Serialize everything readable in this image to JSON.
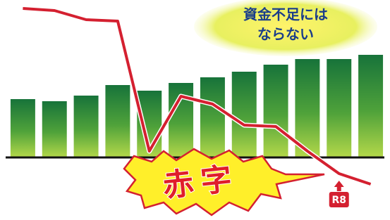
{
  "chart_data": {
    "type": "bar-line",
    "categories": [
      null,
      null,
      null,
      null,
      null,
      null,
      null,
      null,
      null,
      null,
      "R8",
      null
    ],
    "values": [
      83,
      80,
      88,
      103,
      95,
      106,
      114,
      122,
      132,
      140,
      140,
      146
    ],
    "color": "#2a8a3a",
    "line": {
      "values": [
        212,
        209,
        196,
        194,
        9,
        87,
        76,
        46,
        44,
        9,
        -23,
        -38
      ],
      "color": "#d42030"
    },
    "ylim": [
      -90,
      230
    ],
    "callouts": {
      "cloud": [
        "資金不足には",
        "ならない"
      ],
      "burst": "赤字"
    }
  }
}
